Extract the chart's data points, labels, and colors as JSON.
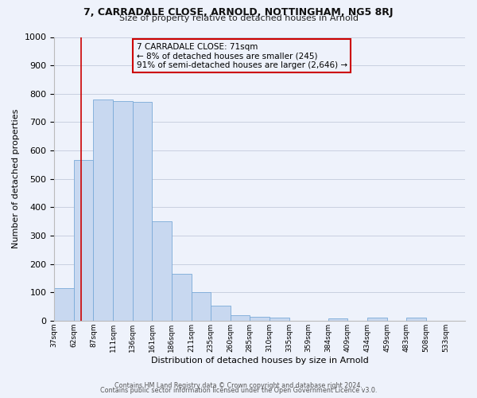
{
  "title1": "7, CARRADALE CLOSE, ARNOLD, NOTTINGHAM, NG5 8RJ",
  "title2": "Size of property relative to detached houses in Arnold",
  "xlabel": "Distribution of detached houses by size in Arnold",
  "ylabel": "Number of detached properties",
  "bin_labels": [
    "37sqm",
    "62sqm",
    "87sqm",
    "111sqm",
    "136sqm",
    "161sqm",
    "186sqm",
    "211sqm",
    "235sqm",
    "260sqm",
    "285sqm",
    "310sqm",
    "335sqm",
    "359sqm",
    "384sqm",
    "409sqm",
    "434sqm",
    "459sqm",
    "483sqm",
    "508sqm",
    "533sqm"
  ],
  "bar_values": [
    115,
    565,
    780,
    775,
    770,
    350,
    165,
    100,
    52,
    20,
    13,
    10,
    0,
    0,
    9,
    0,
    10,
    0,
    10,
    0,
    0
  ],
  "bar_color": "#c8d8f0",
  "bar_edge_color": "#7aaad8",
  "property_line_label": "7 CARRADALE CLOSE: 71sqm",
  "annotation_line2": "← 8% of detached houses are smaller (245)",
  "annotation_line3": "91% of semi-detached houses are larger (2,646) →",
  "vline_color": "#cc0000",
  "ylim": [
    0,
    1000
  ],
  "yticks": [
    0,
    100,
    200,
    300,
    400,
    500,
    600,
    700,
    800,
    900,
    1000
  ],
  "footer1": "Contains HM Land Registry data © Crown copyright and database right 2024.",
  "footer2": "Contains public sector information licensed under the Open Government Licence v3.0.",
  "bg_color": "#eef2fb",
  "grid_color": "#c8cfe0"
}
